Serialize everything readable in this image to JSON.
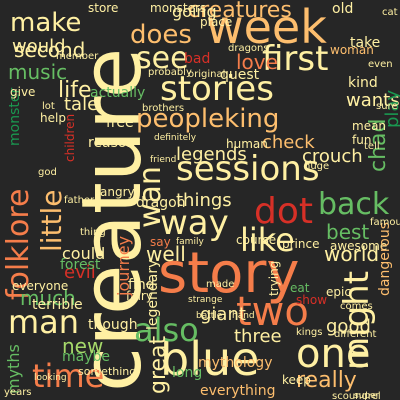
{
  "colors": {
    "background": "#262626",
    "cream": "#fff0a3",
    "peach": "#fdbe6e",
    "orange": "#f57d4a",
    "red": "#d73027",
    "crimson": "#a50026",
    "pale_green": "#d9ef8b",
    "light_green": "#a6d96a",
    "green": "#66bd63",
    "dark_green": "#1a9850",
    "deep_green": "#006837"
  },
  "words": [
    {
      "id": "creature",
      "text": "creature",
      "color": "#fff0a3"
    },
    {
      "id": "story",
      "text": "story",
      "color": "#f57d4a"
    },
    {
      "id": "week",
      "text": "week",
      "color": "#fdbe6e"
    },
    {
      "id": "blue",
      "text": "blue",
      "color": "#fff0a3"
    },
    {
      "id": "stories",
      "text": "stories",
      "color": "#fff0a3"
    },
    {
      "id": "sessions",
      "text": "sessions",
      "color": "#fff0a3"
    },
    {
      "id": "man",
      "text": "man",
      "color": "#fff0a3"
    },
    {
      "id": "peopleking",
      "text": "peopleking",
      "color": "#fdbe6e"
    },
    {
      "id": "first",
      "text": "first",
      "color": "#fff0a3"
    },
    {
      "id": "see",
      "text": "see",
      "color": "#fff0a3"
    },
    {
      "id": "two",
      "text": "two",
      "color": "#f57d4a"
    },
    {
      "id": "one",
      "text": "one",
      "color": "#fff0a3"
    },
    {
      "id": "like",
      "text": "like",
      "color": "#fff0a3"
    },
    {
      "id": "dot",
      "text": "dot",
      "color": "#d73027"
    },
    {
      "id": "back",
      "text": "back",
      "color": "#66bd63"
    },
    {
      "id": "way",
      "text": "way",
      "color": "#fff0a3"
    },
    {
      "id": "folklore",
      "text": "folklore",
      "color": "#f57d4a"
    },
    {
      "id": "little",
      "text": "little",
      "color": "#fdbe6e"
    },
    {
      "id": "also",
      "text": "also",
      "color": "#66bd63"
    },
    {
      "id": "time",
      "text": "time",
      "color": "#f57d4a"
    },
    {
      "id": "might",
      "text": "might",
      "color": "#fff0a3"
    },
    {
      "id": "wan",
      "text": "wan",
      "color": "#fff0a3"
    },
    {
      "id": "creatures",
      "text": "creatures",
      "color": "#fdbe6e"
    },
    {
      "id": "does",
      "text": "does",
      "color": "#fdbe6e"
    },
    {
      "id": "make",
      "text": "make",
      "color": "#fff0a3"
    },
    {
      "id": "would",
      "text": "would",
      "color": "#fff0a3"
    },
    {
      "id": "music",
      "text": "music",
      "color": "#66bd63"
    },
    {
      "id": "second",
      "text": "second",
      "color": "#fff0a3"
    },
    {
      "id": "life",
      "text": "life",
      "color": "#fff0a3"
    },
    {
      "id": "tale",
      "text": "tale",
      "color": "#fff0a3"
    },
    {
      "id": "going",
      "text": "going",
      "color": "#fff0a3"
    },
    {
      "id": "love",
      "text": "love",
      "color": "#f57d4a"
    },
    {
      "id": "crouch",
      "text": "crouch",
      "color": "#fff0a3"
    },
    {
      "id": "legends",
      "text": "legends",
      "color": "#fff0a3"
    },
    {
      "id": "things",
      "text": "things",
      "color": "#fff0a3"
    },
    {
      "id": "best",
      "text": "best",
      "color": "#66bd63"
    },
    {
      "id": "world",
      "text": "world",
      "color": "#fff0a3"
    },
    {
      "id": "much",
      "text": "much",
      "color": "#66bd63"
    },
    {
      "id": "new",
      "text": "new",
      "color": "#a6d96a"
    },
    {
      "id": "evil",
      "text": "evil",
      "color": "#d73027"
    },
    {
      "id": "well",
      "text": "well",
      "color": "#fff0a3"
    },
    {
      "id": "really",
      "text": "really",
      "color": "#fdbe6e"
    },
    {
      "id": "good",
      "text": "good",
      "color": "#fff0a3"
    },
    {
      "id": "three",
      "text": "three",
      "color": "#fff0a3"
    },
    {
      "id": "giant",
      "text": "giant",
      "color": "#fff0a3"
    },
    {
      "id": "great",
      "text": "great",
      "color": "#fff0a3"
    },
    {
      "id": "chad",
      "text": "chad",
      "color": "#66bd63"
    },
    {
      "id": "wants",
      "text": "wants",
      "color": "#fff0a3"
    },
    {
      "id": "check",
      "text": "check",
      "color": "#fdbe6e"
    },
    {
      "id": "could",
      "text": "could",
      "color": "#fff0a3"
    },
    {
      "id": "forest",
      "text": "forest",
      "color": "#66bd63"
    },
    {
      "id": "terrible",
      "text": "terrible",
      "color": "#fff0a3"
    },
    {
      "id": "myths",
      "text": "myths",
      "color": "#66bd63"
    },
    {
      "id": "maybe",
      "text": "maybe",
      "color": "#66bd63"
    },
    {
      "id": "something",
      "text": "something",
      "color": "#fff0a3"
    },
    {
      "id": "everything",
      "text": "everything",
      "color": "#fdbe6e"
    },
    {
      "id": "long",
      "text": "long",
      "color": "#66bd63"
    },
    {
      "id": "though",
      "text": "though",
      "color": "#fff0a3"
    },
    {
      "id": "find",
      "text": "find",
      "color": "#fff0a3"
    },
    {
      "id": "fairy",
      "text": "fairy",
      "color": "#fff0a3"
    },
    {
      "id": "dragon",
      "text": "dragon",
      "color": "#fff0a3"
    },
    {
      "id": "prince",
      "text": "prince",
      "color": "#fff0a3"
    },
    {
      "id": "awesome",
      "text": "awesome",
      "color": "#fff0a3"
    },
    {
      "id": "mythology",
      "text": "mythology",
      "color": "#fdbe6e"
    },
    {
      "id": "kind",
      "text": "kind",
      "color": "#fff0a3"
    },
    {
      "id": "free",
      "text": "free",
      "color": "#fff0a3"
    },
    {
      "id": "reason",
      "text": "reason",
      "color": "#fff0a3"
    },
    {
      "id": "actually",
      "text": "actually",
      "color": "#66bd63"
    },
    {
      "id": "bad",
      "text": "bad",
      "color": "#d73027"
    },
    {
      "id": "quest",
      "text": "quest",
      "color": "#fff0a3"
    },
    {
      "id": "old",
      "text": "old",
      "color": "#fff0a3"
    },
    {
      "id": "take",
      "text": "take",
      "color": "#fff0a3"
    },
    {
      "id": "woman",
      "text": "woman",
      "color": "#fdbe6e"
    },
    {
      "id": "play",
      "text": "play",
      "color": "#1a9850"
    },
    {
      "id": "journey",
      "text": "journey",
      "color": "#f57d4a"
    },
    {
      "id": "legendary",
      "text": "legendary",
      "color": "#fff0a3"
    },
    {
      "id": "monster",
      "text": "monster",
      "color": "#1a9850"
    },
    {
      "id": "human",
      "text": "human",
      "color": "#fff0a3"
    },
    {
      "id": "course",
      "text": "course",
      "color": "#fff0a3"
    },
    {
      "id": "epic",
      "text": "epic",
      "color": "#fff0a3"
    },
    {
      "id": "show",
      "text": "show",
      "color": "#d73027"
    },
    {
      "id": "dangerous",
      "text": "dangerous",
      "color": "#fdbe6e"
    },
    {
      "id": "trying",
      "text": "trying",
      "color": "#fff0a3"
    },
    {
      "id": "eat",
      "text": "eat",
      "color": "#66bd63"
    },
    {
      "id": "keep",
      "text": "keep",
      "color": "#fff0a3"
    },
    {
      "id": "help",
      "text": "help",
      "color": "#fff0a3"
    },
    {
      "id": "give",
      "text": "give",
      "color": "#fff0a3"
    },
    {
      "id": "store",
      "text": "store",
      "color": "#fff0a3"
    },
    {
      "id": "monsters",
      "text": "monsters",
      "color": "#fff0a3"
    },
    {
      "id": "place",
      "text": "place",
      "color": "#fff0a3"
    },
    {
      "id": "probably",
      "text": "probably",
      "color": "#fff0a3"
    },
    {
      "id": "original",
      "text": "original",
      "color": "#fff0a3"
    },
    {
      "id": "dragons",
      "text": "dragons",
      "color": "#fff0a3"
    },
    {
      "id": "mean",
      "text": "mean",
      "color": "#fff0a3"
    },
    {
      "id": "fun",
      "text": "fun",
      "color": "#fff0a3"
    },
    {
      "id": "say",
      "text": "say",
      "color": "#f57d4a"
    },
    {
      "id": "family",
      "text": "family",
      "color": "#fff0a3"
    },
    {
      "id": "friend",
      "text": "friend",
      "color": "#fff0a3"
    },
    {
      "id": "everyone",
      "text": "everyone",
      "color": "#fff0a3"
    },
    {
      "id": "made",
      "text": "made",
      "color": "#fff0a3"
    },
    {
      "id": "comes",
      "text": "comes",
      "color": "#fff0a3"
    },
    {
      "id": "kings",
      "text": "kings",
      "color": "#fff0a3"
    },
    {
      "id": "different",
      "text": "different",
      "color": "#fff0a3"
    },
    {
      "id": "brothers",
      "text": "brothers",
      "color": "#fff0a3"
    },
    {
      "id": "definitely",
      "text": "definitely",
      "color": "#fff0a3"
    },
    {
      "id": "famous",
      "text": "famous",
      "color": "#fff0a3"
    },
    {
      "id": "member",
      "text": "member",
      "color": "#fff0a3"
    },
    {
      "id": "father",
      "text": "father",
      "color": "#fff0a3"
    },
    {
      "id": "angry",
      "text": "angry",
      "color": "#fff0a3"
    },
    {
      "id": "children",
      "text": "children",
      "color": "#d73027"
    },
    {
      "id": "cat",
      "text": "cat",
      "color": "#fff0a3"
    },
    {
      "id": "years",
      "text": "years",
      "color": "#fff0a3"
    },
    {
      "id": "looking",
      "text": "looking",
      "color": "#fff0a3"
    },
    {
      "id": "scoundrel",
      "text": "scoundrel",
      "color": "#fff0a3"
    },
    {
      "id": "strange",
      "text": "strange",
      "color": "#fff0a3"
    },
    {
      "id": "battle",
      "text": "battle",
      "color": "#fff0a3"
    },
    {
      "id": "thing",
      "text": "thing",
      "color": "#fff0a3"
    },
    {
      "id": "hand",
      "text": "hand",
      "color": "#fff0a3"
    },
    {
      "id": "super",
      "text": "super",
      "color": "#fff0a3"
    },
    {
      "id": "sure",
      "text": "sure",
      "color": "#fff0a3"
    },
    {
      "id": "even",
      "text": "even",
      "color": "#fff0a3"
    },
    {
      "id": "huge",
      "text": "huge",
      "color": "#fff0a3"
    },
    {
      "id": "god",
      "text": "god",
      "color": "#fff0a3"
    },
    {
      "id": "lot",
      "text": "lot",
      "color": "#fff0a3"
    },
    {
      "id": "tell",
      "text": "tell",
      "color": "#fff0a3"
    }
  ]
}
